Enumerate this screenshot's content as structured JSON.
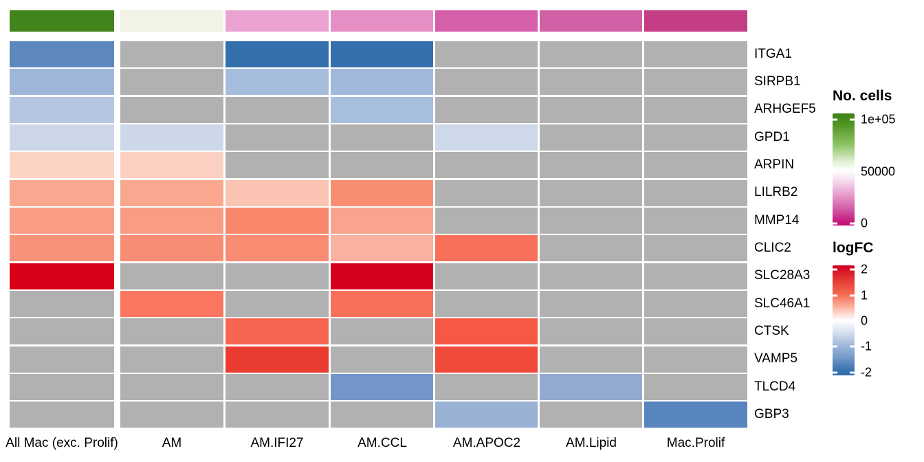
{
  "legends": {
    "no_cells": {
      "title": "No. cells",
      "ticks": [
        "1e+05",
        "50000",
        "0"
      ],
      "tick_values": [
        100000,
        50000,
        0
      ],
      "color_high": "#4d9221",
      "color_mid": "#ffffff",
      "color_low": "#c51b7d"
    },
    "logfc": {
      "title": "logFC",
      "ticks": [
        "2",
        "1",
        "0",
        "-1",
        "-2"
      ],
      "tick_values": [
        2,
        1,
        0,
        -1,
        -2
      ],
      "color_high": "#cf0022",
      "color_mid": "#ffffff",
      "color_low": "#2f6bab"
    }
  },
  "chart_data": {
    "type": "heatmap",
    "title": "",
    "columns": [
      "All Mac (exc. Prolif)",
      "AM",
      "AM.IFI27",
      "AM.CCL",
      "AM.APOC2",
      "AM.Lipid",
      "Mac.Prolif"
    ],
    "rows": [
      "ITGA1",
      "SIRPB1",
      "ARHGEF5",
      "GPD1",
      "ARPIN",
      "LILRB2",
      "MMP14",
      "CLIC2",
      "SLC28A3",
      "SLC46A1",
      "CTSK",
      "VAMP5",
      "TLCD4",
      "GBP3"
    ],
    "value_label": "logFC",
    "value_range": [
      -2,
      2
    ],
    "na_color": "#b1b1b1",
    "logfc_estimated": [
      [
        -1.3,
        null,
        -1.8,
        -1.8,
        null,
        null,
        null
      ],
      [
        -0.7,
        null,
        -0.65,
        -0.7,
        null,
        null,
        null
      ],
      [
        -0.5,
        null,
        null,
        -0.65,
        null,
        null,
        null
      ],
      [
        -0.35,
        -0.35,
        null,
        null,
        -0.33,
        null,
        null
      ],
      [
        0.3,
        0.32,
        null,
        null,
        null,
        null,
        null
      ],
      [
        0.8,
        0.8,
        0.5,
        1.0,
        null,
        null,
        null
      ],
      [
        0.9,
        0.9,
        1.1,
        0.85,
        null,
        null,
        null
      ],
      [
        1.0,
        1.05,
        1.05,
        0.7,
        1.3,
        null,
        null
      ],
      [
        2.4,
        null,
        null,
        2.4,
        null,
        null,
        null
      ],
      [
        null,
        1.25,
        null,
        1.3,
        null,
        null,
        null
      ],
      [
        null,
        null,
        1.4,
        null,
        1.5,
        null,
        null
      ],
      [
        null,
        null,
        1.75,
        null,
        1.6,
        null,
        null
      ],
      [
        null,
        null,
        null,
        -1.1,
        null,
        -0.85,
        null
      ],
      [
        null,
        null,
        null,
        null,
        -0.75,
        null,
        -1.4
      ]
    ],
    "cell_colors": [
      [
        "#5c88be",
        null,
        "#336fac",
        "#336fac",
        null,
        null,
        null
      ],
      [
        "#a0b6d8",
        null,
        "#a6bcdc",
        "#a2b8da",
        null,
        null,
        null
      ],
      [
        "#b6c6e0",
        null,
        null,
        "#a8bedd",
        null,
        null,
        null
      ],
      [
        "#cbd7e9",
        "#ccd8ea",
        null,
        null,
        "#cdd8e8",
        null,
        null
      ],
      [
        "#fcd3c5",
        "#fcd1c3",
        null,
        null,
        null,
        null,
        null
      ],
      [
        "#f9a78f",
        "#f9a78e",
        "#fbc3b2",
        "#f98d72",
        null,
        null,
        null
      ],
      [
        "#f99d84",
        "#f99c84",
        "#f8876c",
        "#f9a48c",
        null,
        null,
        null
      ],
      [
        "#f9927b",
        "#f98c74",
        "#f98b73",
        "#fbb1a0",
        "#f9705a",
        null,
        null
      ],
      [
        "#d80018",
        null,
        null,
        "#d6001e",
        null,
        null,
        null
      ],
      [
        null,
        "#fa7661",
        null,
        "#f97059",
        null,
        null,
        null
      ],
      [
        null,
        null,
        "#f7644f",
        null,
        "#f55843",
        null,
        null
      ],
      [
        null,
        null,
        "#ea3b31",
        null,
        "#f04a3b",
        null,
        null
      ],
      [
        null,
        null,
        null,
        "#7396ca",
        null,
        "#92aad2",
        null
      ],
      [
        null,
        null,
        null,
        null,
        "#9ab1d6",
        null,
        "#5885bd"
      ]
    ],
    "column_annotation": {
      "legend": "No. cells",
      "colors": [
        "#41841c",
        "#f2f3e6",
        "#eba4d2",
        "#e68fc5",
        "#d55fa8",
        "#d160a7",
        "#c43e86"
      ],
      "no_cells_estimated": [
        95000,
        52000,
        35000,
        28000,
        17000,
        16000,
        7000
      ]
    }
  }
}
